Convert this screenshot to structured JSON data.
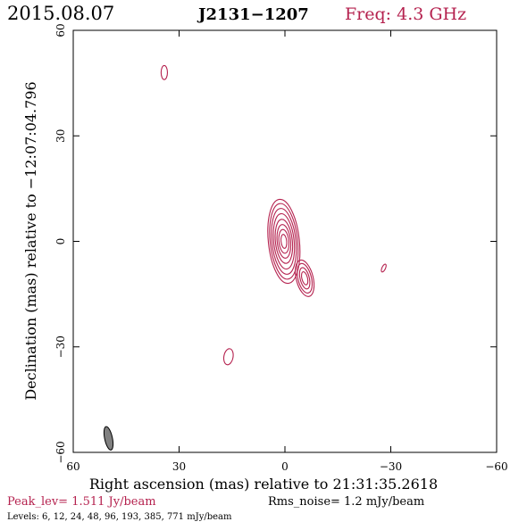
{
  "header": {
    "date": "2015.08.07",
    "source": "J2131−1207",
    "frequency": "Freq: 4.3 GHz"
  },
  "colors": {
    "contour": "#b5224f",
    "beam_fill": "#808080",
    "frame": "#000000"
  },
  "chart_data": {
    "type": "contour",
    "xlabel": "Right ascension (mas) relative to 21:31:35.2618",
    "ylabel": "Declination (mas) relative to −12:07:04.796",
    "xlim": [
      60,
      -60
    ],
    "ylim": [
      -60,
      60
    ],
    "x_ticks": [
      {
        "value": 60,
        "label": "60"
      },
      {
        "value": 30,
        "label": "30"
      },
      {
        "value": 0,
        "label": "0"
      },
      {
        "value": -30,
        "label": "−30"
      },
      {
        "value": -60,
        "label": "−60"
      }
    ],
    "y_ticks": [
      {
        "value": -60,
        "label": "−60"
      },
      {
        "value": -30,
        "label": "−30"
      },
      {
        "value": 0,
        "label": "0"
      },
      {
        "value": 30,
        "label": "30"
      },
      {
        "value": 60,
        "label": "60"
      }
    ],
    "peak_text": "Peak_lev=  1.511 Jy/beam",
    "rms_text": "Rms_noise=  1.2 mJy/beam",
    "levels_text": "Levels:   6,  12,  24,  48,  96, 193, 385, 771 mJy/beam",
    "levels_mjy_per_beam": [
      6,
      12,
      24,
      48,
      96,
      193,
      385,
      771
    ],
    "peak_jy_per_beam": 1.511,
    "rms_mjy_per_beam": 1.2,
    "core": {
      "center": [
        0.3,
        0.0
      ],
      "contours": [
        {
          "level": 6,
          "rx": 4.4,
          "ry": 12.0
        },
        {
          "level": 12,
          "rx": 3.9,
          "ry": 10.8
        },
        {
          "level": 24,
          "rx": 3.4,
          "ry": 9.4
        },
        {
          "level": 48,
          "rx": 2.9,
          "ry": 7.9
        },
        {
          "level": 96,
          "rx": 2.4,
          "ry": 6.3
        },
        {
          "level": 193,
          "rx": 1.9,
          "ry": 4.8
        },
        {
          "level": 385,
          "rx": 1.4,
          "ry": 3.4
        },
        {
          "level": 771,
          "rx": 0.8,
          "ry": 2.0
        }
      ]
    },
    "jet_component": {
      "center": [
        -5.6,
        -10.5
      ],
      "contours": [
        {
          "level": 6,
          "rx": 2.4,
          "ry": 5.3
        },
        {
          "level": 12,
          "rx": 1.9,
          "ry": 4.3
        },
        {
          "level": 24,
          "rx": 1.3,
          "ry": 3.1
        },
        {
          "level": 48,
          "rx": 0.8,
          "ry": 1.9
        }
      ]
    },
    "isolated_features": [
      {
        "center": [
          34.2,
          48.0
        ],
        "rx": 0.9,
        "ry": 2.0,
        "angle": 0
      },
      {
        "center": [
          16.0,
          -32.8
        ],
        "rx": 1.3,
        "ry": 2.3,
        "angle": 10
      },
      {
        "center": [
          -28.0,
          -7.6
        ],
        "rx": 0.5,
        "ry": 1.2,
        "angle": 25
      }
    ],
    "beam": {
      "center": [
        50.0,
        -56.0
      ],
      "major_mas": 6.8,
      "minor_mas": 2.2,
      "pa_deg": -12
    }
  }
}
